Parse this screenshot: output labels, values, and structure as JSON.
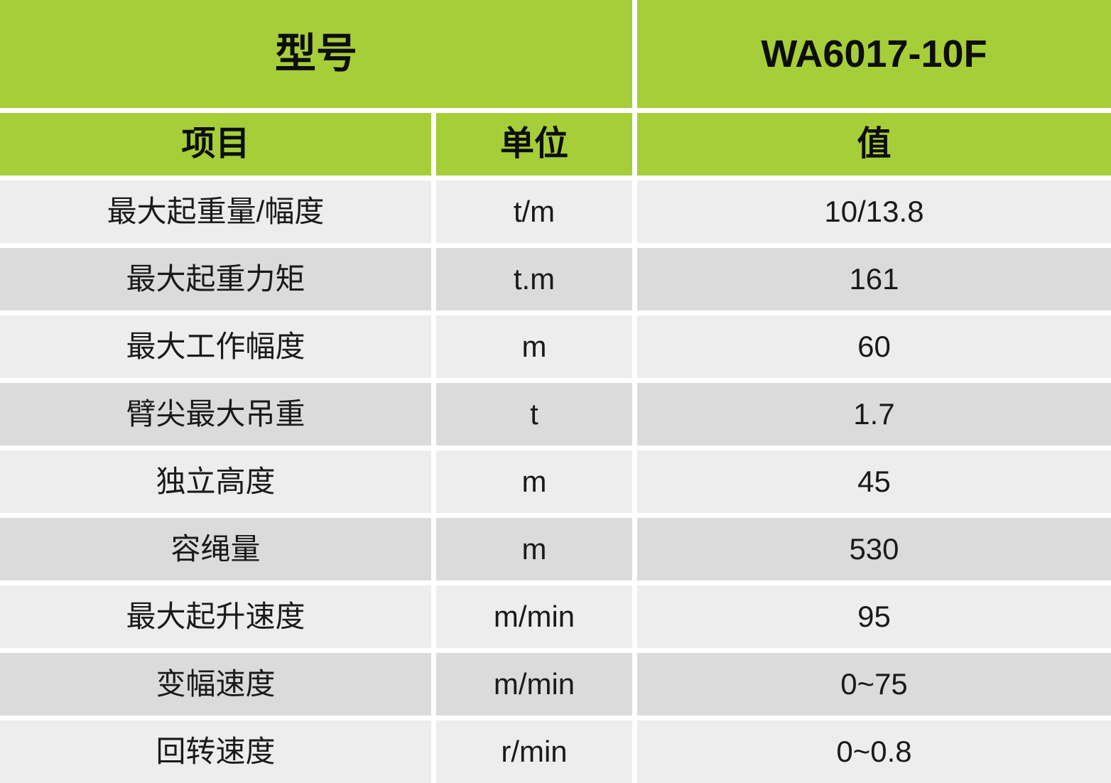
{
  "table": {
    "header_row1": {
      "model_label": "型号",
      "model_value": "WA6017-10F"
    },
    "header_row2": {
      "item": "项目",
      "unit": "单位",
      "value": "值"
    },
    "rows": [
      {
        "item": "最大起重量/幅度",
        "unit": "t/m",
        "value": "10/13.8"
      },
      {
        "item": "最大起重力矩",
        "unit": "t.m",
        "value": "161"
      },
      {
        "item": "最大工作幅度",
        "unit": "m",
        "value": "60"
      },
      {
        "item": "臂尖最大吊重",
        "unit": "t",
        "value": "1.7"
      },
      {
        "item": "独立高度",
        "unit": "m",
        "value": "45"
      },
      {
        "item": "容绳量",
        "unit": "m",
        "value": "530"
      },
      {
        "item": "最大起升速度",
        "unit": "m/min",
        "value": "95"
      },
      {
        "item": "变幅速度",
        "unit": "m/min",
        "value": "0~75"
      },
      {
        "item": "回转速度",
        "unit": "r/min",
        "value": "0~0.8"
      }
    ]
  },
  "colors": {
    "header_green": "#a6ce39",
    "row_light": "#ededed",
    "row_dark": "#dbdbdb",
    "gap_white": "#ffffff",
    "text_dark": "#1a1a1a"
  }
}
